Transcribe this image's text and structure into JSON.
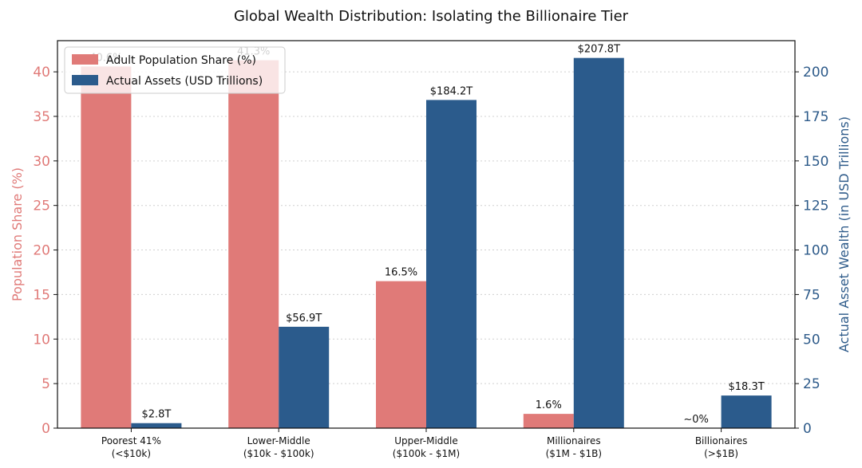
{
  "chart_data": {
    "type": "bar",
    "title": "Global Wealth Distribution: Isolating the Billionaire Tier",
    "categories": [
      [
        "Poorest 41%",
        "(<$10k)"
      ],
      [
        "Lower-Middle",
        "($10k - $100k)"
      ],
      [
        "Upper-Middle",
        "($100k - $1M)"
      ],
      [
        "Millionaires",
        "($1M - $1B)"
      ],
      [
        "Billionaires",
        "(>$1B)"
      ]
    ],
    "ylabel_left": "Population Share (%)",
    "ylabel_right": "Actual Asset Wealth (in USD Trillions)",
    "ylim_left": [
      0,
      43.5
    ],
    "ylim_right": [
      0,
      217.5
    ],
    "yticks_left": [
      0,
      5,
      10,
      15,
      20,
      25,
      30,
      35,
      40
    ],
    "yticks_right": [
      0,
      25,
      50,
      75,
      100,
      125,
      150,
      175,
      200
    ],
    "grid": true,
    "legend_position": "top-left",
    "colors": {
      "population": "#e07a78",
      "assets": "#2b5b8c"
    },
    "series": [
      {
        "name": "Adult Population Share (%)",
        "axis": "left",
        "values": [
          40.6,
          41.3,
          16.5,
          1.6,
          0.0
        ],
        "labels": [
          "40.6%",
          "41.3%",
          "16.5%",
          "1.6%",
          "~0%"
        ]
      },
      {
        "name": "Actual Assets (USD Trillions)",
        "axis": "right",
        "values": [
          2.8,
          56.9,
          184.2,
          207.8,
          18.3
        ],
        "labels": [
          "$2.8T",
          "$56.9T",
          "$184.2T",
          "$207.8T",
          "$18.3T"
        ]
      }
    ]
  }
}
